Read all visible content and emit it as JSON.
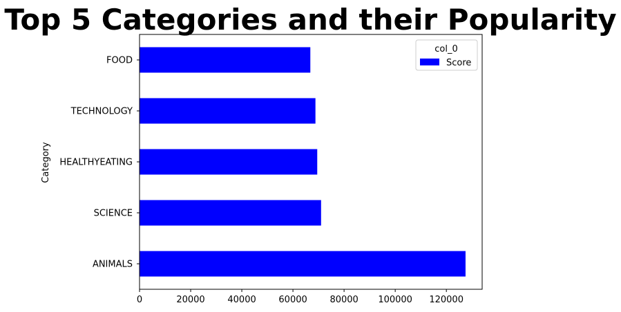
{
  "chart_data": {
    "type": "bar",
    "orientation": "horizontal",
    "title": "Top 5 Categories and their Popularity",
    "xlabel": "",
    "ylabel": "Category",
    "categories": [
      "ANIMALS",
      "SCIENCE",
      "HEALTHYEATING",
      "TECHNOLOGY",
      "FOOD"
    ],
    "series": [
      {
        "name": "Score",
        "values": [
          127500,
          71000,
          69500,
          68800,
          66800
        ],
        "color": "#0000ff"
      }
    ],
    "xlim": [
      0,
      134000
    ],
    "xticks": [
      0,
      20000,
      40000,
      60000,
      80000,
      100000,
      120000
    ],
    "xtick_labels": [
      "0",
      "20000",
      "40000",
      "60000",
      "80000",
      "100000",
      "120000"
    ],
    "grid": false,
    "legend": {
      "title": "col_0",
      "placement": "top-right",
      "entries": [
        "Score"
      ]
    }
  }
}
